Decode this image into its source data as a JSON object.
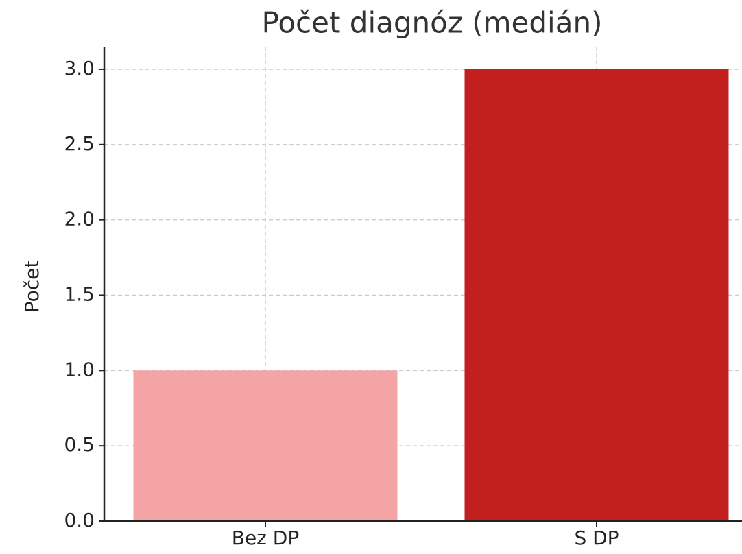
{
  "chart_data": {
    "type": "bar",
    "title": "Počet diagnóz (medián)",
    "y_label": "Počet",
    "categories": [
      "Bez DP",
      "S DP"
    ],
    "values": [
      1,
      3
    ],
    "colors": [
      "#f4a4a4",
      "#c21f1f"
    ],
    "ylim": [
      0,
      3.15
    ],
    "yticks": [
      {
        "value": 0,
        "label": "0.0"
      },
      0.5,
      {
        "value": 1,
        "label": "1.0"
      },
      1.5,
      {
        "value": 2,
        "label": "2.0"
      },
      2.5,
      {
        "value": 3,
        "label": "3.0"
      }
    ],
    "grid": true
  }
}
